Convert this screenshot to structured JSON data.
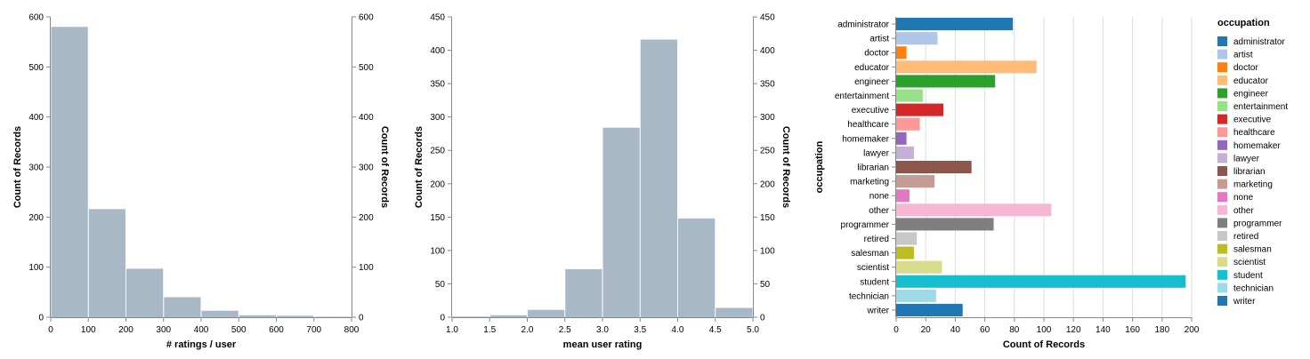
{
  "chart_data": [
    {
      "type": "bar",
      "subtype": "histogram",
      "bins": [
        [
          0,
          100
        ],
        [
          100,
          200
        ],
        [
          200,
          300
        ],
        [
          300,
          400
        ],
        [
          400,
          500
        ],
        [
          500,
          600
        ],
        [
          600,
          700
        ],
        [
          700,
          800
        ]
      ],
      "values": [
        580,
        216,
        97,
        40,
        13,
        4,
        3,
        1
      ],
      "xlabel": "# ratings / user",
      "ylabel_left": "Count of Records",
      "ylabel_right": "Count of Records",
      "xlim": [
        0,
        800
      ],
      "ylim": [
        0,
        600
      ],
      "xticks": [
        0,
        100,
        200,
        300,
        400,
        500,
        600,
        700,
        800
      ],
      "yticks": [
        0,
        100,
        200,
        300,
        400,
        500,
        600
      ],
      "color": "#a9b8c6",
      "grid": false
    },
    {
      "type": "bar",
      "subtype": "histogram",
      "bins": [
        [
          1.0,
          1.5
        ],
        [
          1.5,
          2.0
        ],
        [
          2.0,
          2.5
        ],
        [
          2.5,
          3.0
        ],
        [
          3.0,
          3.5
        ],
        [
          3.5,
          4.0
        ],
        [
          4.0,
          4.5
        ],
        [
          4.5,
          5.0
        ]
      ],
      "values": [
        1,
        3,
        11,
        72,
        284,
        416,
        148,
        14
      ],
      "xlabel": "mean user rating",
      "ylabel_left": "Count of Records",
      "ylabel_right": "Count of Records",
      "xlim": [
        1.0,
        5.0
      ],
      "ylim": [
        0,
        450
      ],
      "xticks": [
        "1.0",
        "1.5",
        "2.0",
        "2.5",
        "3.0",
        "3.5",
        "4.0",
        "4.5",
        "5.0"
      ],
      "yticks": [
        0,
        50,
        100,
        150,
        200,
        250,
        300,
        350,
        400,
        450
      ],
      "color": "#a9b8c6",
      "grid": false
    },
    {
      "type": "bar",
      "orientation": "horizontal",
      "categories": [
        "administrator",
        "artist",
        "doctor",
        "educator",
        "engineer",
        "entertainment",
        "executive",
        "healthcare",
        "homemaker",
        "lawyer",
        "librarian",
        "marketing",
        "none",
        "other",
        "programmer",
        "retired",
        "salesman",
        "scientist",
        "student",
        "technician",
        "writer"
      ],
      "values": [
        79,
        28,
        7,
        95,
        67,
        18,
        32,
        16,
        7,
        12,
        51,
        26,
        9,
        105,
        66,
        14,
        12,
        31,
        196,
        27,
        45
      ],
      "colors": [
        "#1f77b4",
        "#aec7e8",
        "#ff7f0e",
        "#ffbb78",
        "#2ca02c",
        "#98df8a",
        "#d62728",
        "#ff9896",
        "#9467bd",
        "#c5b0d5",
        "#8c564b",
        "#c49c94",
        "#e377c2",
        "#f7b6d2",
        "#7f7f7f",
        "#c7c7c7",
        "#bcbd22",
        "#dbdb8d",
        "#17becf",
        "#9edae5",
        "#1f77b4"
      ],
      "xlabel": "Count of Records",
      "ylabel": "occupation",
      "xlim": [
        0,
        200
      ],
      "xticks": [
        0,
        20,
        40,
        60,
        80,
        100,
        120,
        140,
        160,
        180,
        200
      ],
      "grid": true,
      "legend": {
        "title": "occupation",
        "placement": "right"
      }
    }
  ]
}
